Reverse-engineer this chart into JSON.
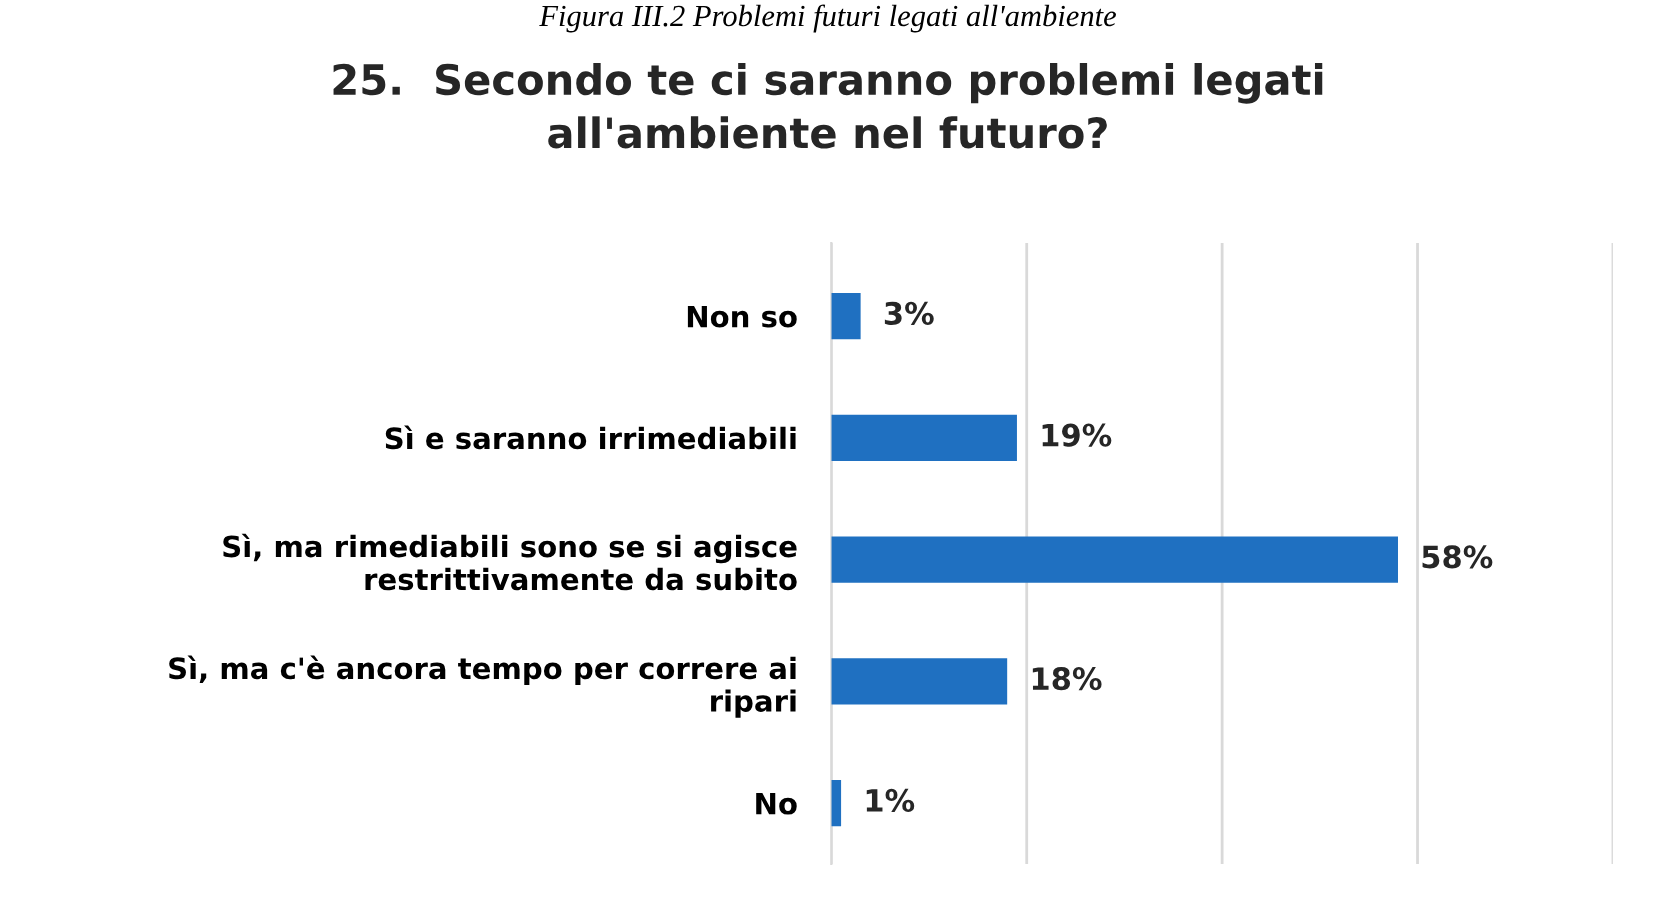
{
  "chart_data": {
    "type": "bar",
    "orientation": "horizontal",
    "title": "25.  Secondo te ci saranno problemi legati\nall'ambiente nel futuro?",
    "annotations": [
      "Figura III.2 Problemi futuri legati all'ambiente"
    ],
    "categories": [
      "Non so",
      "Sì e saranno irrimediabili",
      "Sì, ma rimediabili sono se si agisce\nrestrittivamente da subito",
      "Sì, ma c'è ancora tempo per correre ai\nripari",
      "No"
    ],
    "values": [
      3,
      19,
      58,
      18,
      1
    ],
    "value_labels": [
      "3%",
      "19%",
      "58%",
      "18%",
      "1%"
    ],
    "color": "#1f70c1",
    "xlim": [
      0,
      80
    ],
    "xticks": [
      {
        "value": 0,
        "label": null
      },
      {
        "value": 20,
        "label": null
      },
      {
        "value": 40,
        "label": null
      },
      {
        "value": 60,
        "label": null
      },
      {
        "value": 80,
        "label": null
      }
    ],
    "grid": "x",
    "tick_labels": "y",
    "legend": false
  }
}
